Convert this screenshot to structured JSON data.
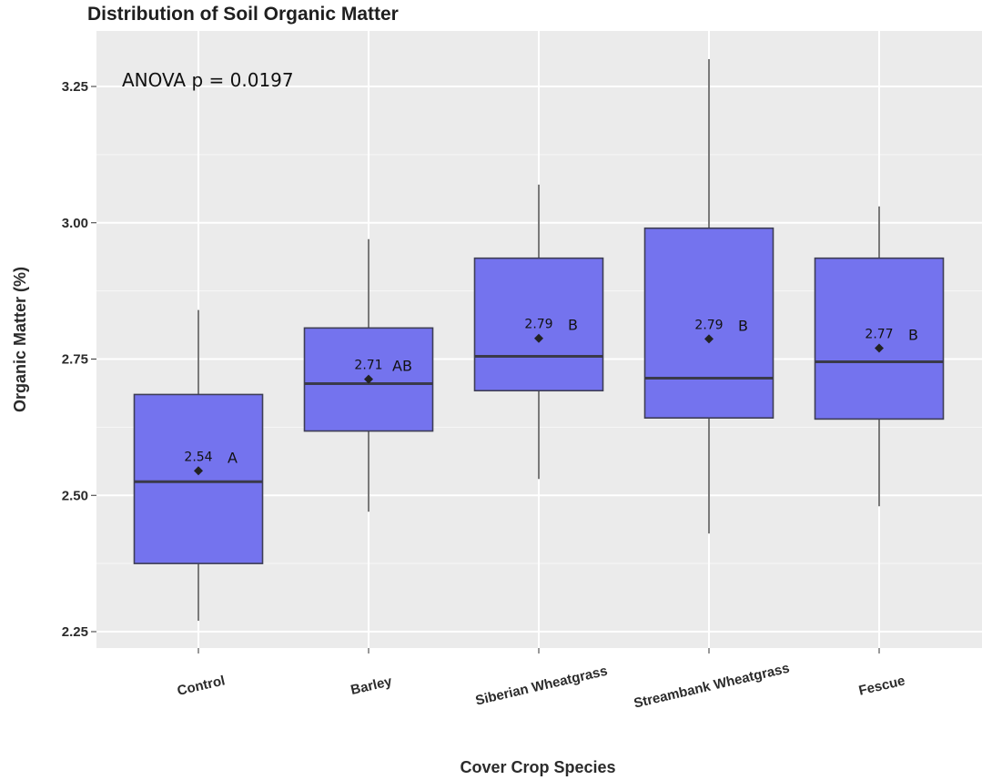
{
  "chart_data": {
    "type": "boxplot",
    "title": "Distribution of Soil Organic Matter",
    "xlabel": "Cover Crop Species",
    "ylabel": "Organic Matter (%)",
    "ylim": [
      2.22,
      3.35
    ],
    "yticks": [
      "2.25",
      "2.50",
      "2.75",
      "3.00",
      "3.25"
    ],
    "annotation": "ANOVA p = 0.0197",
    "box_color": "#7473ee",
    "grid": true,
    "categories": [
      "Control",
      "Barley",
      "Siberian Wheatgrass",
      "Streambank Wheatgrass",
      "Fescue"
    ],
    "boxes": [
      {
        "category": "Control",
        "whisker_low": 2.27,
        "q1": 2.375,
        "median": 2.525,
        "q3": 2.685,
        "whisker_high": 2.84,
        "mean": 2.545,
        "mean_label": "2.54",
        "group": "A"
      },
      {
        "category": "Barley",
        "whisker_low": 2.47,
        "q1": 2.618,
        "median": 2.705,
        "q3": 2.807,
        "whisker_high": 2.97,
        "mean": 2.713,
        "mean_label": "2.71",
        "group": "AB"
      },
      {
        "category": "Siberian Wheatgrass",
        "whisker_low": 2.53,
        "q1": 2.692,
        "median": 2.755,
        "q3": 2.935,
        "whisker_high": 3.07,
        "mean": 2.788,
        "mean_label": "2.79",
        "group": "B"
      },
      {
        "category": "Streambank Wheatgrass",
        "whisker_low": 2.43,
        "q1": 2.642,
        "median": 2.715,
        "q3": 2.99,
        "whisker_high": 3.3,
        "mean": 2.787,
        "mean_label": "2.79",
        "group": "B"
      },
      {
        "category": "Fescue",
        "whisker_low": 2.48,
        "q1": 2.64,
        "median": 2.745,
        "q3": 2.935,
        "whisker_high": 3.03,
        "mean": 2.77,
        "mean_label": "2.77",
        "group": "B"
      }
    ]
  }
}
